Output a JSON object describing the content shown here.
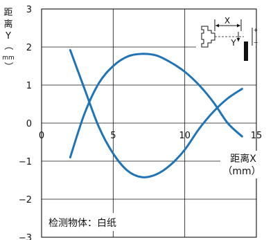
{
  "chart_data": {
    "type": "line",
    "xlabel": "距离X",
    "xunit": "（mm）",
    "ylabel_chars": [
      "距",
      "离",
      "Y",
      "（",
      "mm",
      "）"
    ],
    "xlim": [
      0,
      15
    ],
    "ylim": [
      -3,
      3
    ],
    "x_ticks": [
      "0",
      "5",
      "10",
      "15"
    ],
    "y_ticks": [
      "3",
      "2",
      "1",
      "0",
      "−1",
      "−2",
      "−3"
    ],
    "grid": true,
    "note": "检测物体：白纸",
    "schematic": {
      "x_label": "X",
      "y_label": "Y",
      "plus": "+",
      "minus": "−"
    },
    "series": [
      {
        "color": "#1f73b7",
        "x": [
          2,
          3,
          4,
          5,
          6,
          7,
          8,
          9,
          10,
          11,
          12,
          13,
          14
        ],
        "y": [
          -0.9,
          0.25,
          1.05,
          1.5,
          1.75,
          1.82,
          1.78,
          1.6,
          1.35,
          1.0,
          0.55,
          0.0,
          -0.35
        ]
      },
      {
        "color": "#1f73b7",
        "x": [
          2,
          3,
          4,
          5,
          6,
          7,
          8,
          9,
          10,
          11,
          12,
          13,
          14
        ],
        "y": [
          1.92,
          0.9,
          -0.1,
          -0.8,
          -1.25,
          -1.42,
          -1.35,
          -1.1,
          -0.7,
          -0.15,
          0.3,
          0.65,
          0.9
        ]
      }
    ]
  }
}
